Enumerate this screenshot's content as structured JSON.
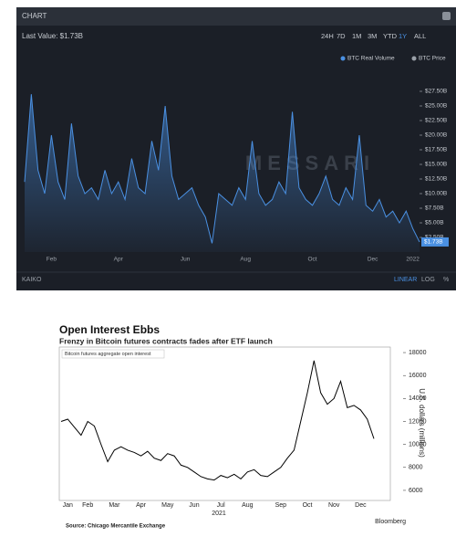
{
  "header": {
    "title": "CHART",
    "last_value": "Last Value: $1.73B",
    "ranges": [
      "24H",
      "7D",
      "1M",
      "3M",
      "YTD",
      "1Y",
      "ALL"
    ],
    "footer_left": "KAIKO",
    "footer_right": [
      "LINEAR",
      "LOG",
      "%"
    ],
    "watermark": "MESSARI"
  },
  "chart_data": [
    {
      "type": "area",
      "legend": [
        {
          "name": "BTC Real Volume",
          "color": "#4a90e2"
        },
        {
          "name": "BTC Price",
          "color": "#9aa0a8"
        }
      ],
      "categories": [
        null,
        null,
        null,
        null,
        "Feb",
        null,
        null,
        null,
        null,
        null,
        null,
        null,
        null,
        null,
        "Apr",
        null,
        null,
        null,
        null,
        null,
        null,
        null,
        null,
        null,
        "Jun",
        null,
        null,
        null,
        null,
        null,
        null,
        null,
        null,
        "Aug",
        null,
        null,
        null,
        null,
        null,
        null,
        null,
        null,
        null,
        "Oct",
        null,
        null,
        null,
        null,
        null,
        null,
        null,
        null,
        "Dec",
        null,
        null,
        null,
        null,
        null,
        "2022",
        null
      ],
      "series": [
        {
          "name": "BTC Real Volume",
          "color": "#4a90e2",
          "values": [
            12,
            27,
            14,
            10,
            20,
            12,
            9,
            22,
            13,
            10,
            11,
            9,
            14,
            10,
            12,
            9,
            16,
            11,
            10,
            19,
            14,
            25,
            13,
            9,
            10,
            11,
            8,
            6,
            1.5,
            10,
            9,
            8,
            11,
            9,
            19,
            10,
            8,
            9,
            12,
            10,
            24,
            11,
            9,
            8,
            10,
            13,
            9,
            8,
            11,
            9,
            20,
            8,
            7,
            9,
            6,
            7,
            5,
            7,
            4,
            1.73
          ]
        }
      ],
      "last_value_tag": "$1.73B",
      "ylim": [
        0,
        28.5
      ],
      "yticks": [
        {
          "value": 2.5,
          "label": "$2.50B"
        },
        {
          "value": 5,
          "label": "$5.00B"
        },
        {
          "value": 7.5,
          "label": "$7.50B"
        },
        {
          "value": 10,
          "label": "$10.00B"
        },
        {
          "value": 12.5,
          "label": "$12.50B"
        },
        {
          "value": 15,
          "label": "$15.00B"
        },
        {
          "value": 17.5,
          "label": "$17.50B"
        },
        {
          "value": 20,
          "label": "$20.00B"
        },
        {
          "value": 22.5,
          "label": "$22.50B"
        },
        {
          "value": 25,
          "label": "$25.00B"
        },
        {
          "value": 27.5,
          "label": "$27.50B"
        }
      ],
      "grid": false
    },
    {
      "type": "line",
      "title": "Open Interest Ebbs",
      "subtitle": "Frenzy in Bitcoin futures contracts fades after ETF launch",
      "y_label": "U.S. dollars (millions)",
      "x_sublabel": "2021",
      "source": "Source: Chicago Mercantile Exchange",
      "credit": "Bloomberg",
      "categories": [
        null,
        "Jan",
        null,
        null,
        "Feb",
        null,
        null,
        null,
        "Mar",
        null,
        null,
        null,
        "Apr",
        null,
        null,
        null,
        "May",
        null,
        null,
        null,
        "Jun",
        null,
        null,
        null,
        "Jul",
        null,
        null,
        null,
        "Aug",
        null,
        null,
        null,
        null,
        "Sep",
        null,
        null,
        null,
        "Oct",
        null,
        null,
        null,
        "Nov",
        null,
        null,
        null,
        "Dec",
        null,
        null
      ],
      "series": [
        {
          "name": "Bitcoin futures aggregate open interest",
          "color": "#000000",
          "values": [
            12000,
            12200,
            11500,
            10800,
            12000,
            11600,
            10000,
            8500,
            9500,
            9800,
            9500,
            9300,
            9000,
            9400,
            8800,
            8600,
            9200,
            9000,
            8200,
            8000,
            7600,
            7200,
            7000,
            6900,
            7300,
            7100,
            7400,
            7000,
            7600,
            7800,
            7300,
            7200,
            7600,
            8000,
            8800,
            9500,
            12000,
            14500,
            17300,
            14500,
            13500,
            14000,
            15500,
            13200,
            13400,
            13000,
            12200,
            10500
          ]
        }
      ],
      "ylim": [
        5200,
        18600
      ],
      "yticks": [
        6000,
        8000,
        10000,
        12000,
        14000,
        16000,
        18000
      ],
      "grid": false
    }
  ]
}
